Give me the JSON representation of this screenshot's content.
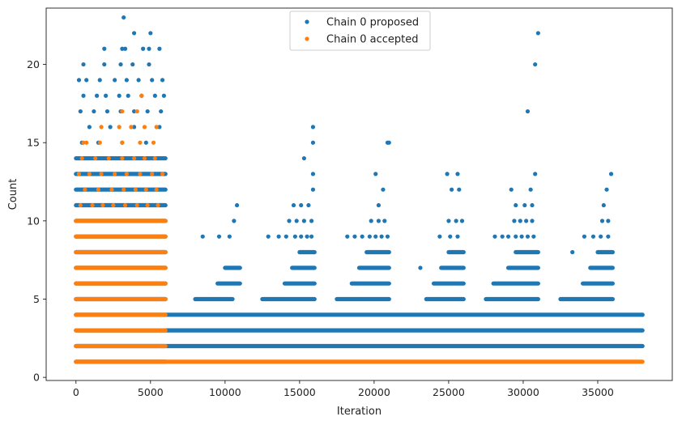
{
  "chart_data": {
    "type": "scatter",
    "xlabel": "Iteration",
    "ylabel": "Count",
    "xlim": [
      -2000,
      40000
    ],
    "ylim": [
      -0.2,
      23.6
    ],
    "xticks": [
      0,
      5000,
      10000,
      15000,
      20000,
      25000,
      30000,
      35000
    ],
    "yticks": [
      0,
      5,
      10,
      15,
      20
    ],
    "legend_position": "top-center",
    "series": [
      {
        "name": "Chain 0 proposed",
        "color": "#1f77b4",
        "segments": [
          {
            "y": 1,
            "x": [
              0,
              6000
            ]
          },
          {
            "y": 2,
            "x": [
              0,
              38000
            ]
          },
          {
            "y": 3,
            "x": [
              0,
              38000
            ]
          },
          {
            "y": 4,
            "x": [
              0,
              38000
            ]
          },
          {
            "y": 5,
            "x": [
              0,
              6000
            ]
          },
          {
            "y": 5,
            "x": [
              8000,
              10500
            ]
          },
          {
            "y": 5,
            "x": [
              12500,
              16000
            ]
          },
          {
            "y": 5,
            "x": [
              17500,
              21000
            ]
          },
          {
            "y": 5,
            "x": [
              23500,
              26000
            ]
          },
          {
            "y": 5,
            "x": [
              27500,
              31000
            ]
          },
          {
            "y": 5,
            "x": [
              32500,
              36000
            ]
          },
          {
            "y": 6,
            "x": [
              0,
              6000
            ]
          },
          {
            "y": 6,
            "x": [
              9500,
              11000
            ]
          },
          {
            "y": 6,
            "x": [
              14000,
              16000
            ]
          },
          {
            "y": 6,
            "x": [
              18500,
              21000
            ]
          },
          {
            "y": 6,
            "x": [
              24000,
              26000
            ]
          },
          {
            "y": 6,
            "x": [
              28000,
              31000
            ]
          },
          {
            "y": 6,
            "x": [
              34000,
              36000
            ]
          },
          {
            "y": 7,
            "x": [
              0,
              6000
            ]
          },
          {
            "y": 7,
            "x": [
              10000,
              11000
            ]
          },
          {
            "y": 7,
            "x": [
              14500,
              16000
            ]
          },
          {
            "y": 7,
            "x": [
              19000,
              21000
            ]
          },
          {
            "y": 7,
            "x": [
              24500,
              26000
            ]
          },
          {
            "y": 7,
            "x": [
              29000,
              31000
            ]
          },
          {
            "y": 7,
            "x": [
              34500,
              36000
            ]
          },
          {
            "y": 8,
            "x": [
              0,
              6000
            ]
          },
          {
            "y": 8,
            "x": [
              15000,
              16000
            ]
          },
          {
            "y": 8,
            "x": [
              19500,
              21000
            ]
          },
          {
            "y": 8,
            "x": [
              25000,
              26000
            ]
          },
          {
            "y": 8,
            "x": [
              29500,
              31000
            ]
          },
          {
            "y": 8,
            "x": [
              35000,
              36000
            ]
          },
          {
            "y": 9,
            "x": [
              0,
              6000
            ]
          },
          {
            "y": 10,
            "x": [
              0,
              6000
            ]
          },
          {
            "y": 11,
            "x": [
              0,
              6000
            ]
          },
          {
            "y": 12,
            "x": [
              0,
              6000
            ]
          },
          {
            "y": 13,
            "x": [
              0,
              6000
            ]
          },
          {
            "y": 14,
            "x": [
              0,
              6000
            ]
          }
        ],
        "points": [
          [
            400,
            15
          ],
          [
            900,
            16
          ],
          [
            1500,
            15
          ],
          [
            2300,
            16
          ],
          [
            3100,
            15
          ],
          [
            3900,
            16
          ],
          [
            4700,
            15
          ],
          [
            5600,
            16
          ],
          [
            300,
            17
          ],
          [
            1200,
            17
          ],
          [
            2100,
            17
          ],
          [
            3000,
            17
          ],
          [
            3900,
            17
          ],
          [
            4800,
            17
          ],
          [
            5700,
            17
          ],
          [
            500,
            18
          ],
          [
            1400,
            18
          ],
          [
            2000,
            18
          ],
          [
            2900,
            18
          ],
          [
            3500,
            18
          ],
          [
            4400,
            18
          ],
          [
            5300,
            18
          ],
          [
            5900,
            18
          ],
          [
            200,
            19
          ],
          [
            700,
            19
          ],
          [
            1600,
            19
          ],
          [
            2600,
            19
          ],
          [
            3400,
            19
          ],
          [
            4200,
            19
          ],
          [
            5100,
            19
          ],
          [
            5800,
            19
          ],
          [
            500,
            20
          ],
          [
            1900,
            20
          ],
          [
            3000,
            20
          ],
          [
            3800,
            20
          ],
          [
            4900,
            20
          ],
          [
            1900,
            21
          ],
          [
            3100,
            21
          ],
          [
            3300,
            21
          ],
          [
            4500,
            21
          ],
          [
            4900,
            21
          ],
          [
            5600,
            21
          ],
          [
            3900,
            22
          ],
          [
            5000,
            22
          ],
          [
            3200,
            23
          ],
          [
            8500,
            9
          ],
          [
            9600,
            9
          ],
          [
            10300,
            9
          ],
          [
            10600,
            10
          ],
          [
            10800,
            11
          ],
          [
            12900,
            9
          ],
          [
            13600,
            9
          ],
          [
            14100,
            9
          ],
          [
            14700,
            9
          ],
          [
            15100,
            9
          ],
          [
            15500,
            9
          ],
          [
            15800,
            9
          ],
          [
            14300,
            10
          ],
          [
            14800,
            10
          ],
          [
            15300,
            10
          ],
          [
            15800,
            10
          ],
          [
            14600,
            11
          ],
          [
            15100,
            11
          ],
          [
            15600,
            11
          ],
          [
            15900,
            12
          ],
          [
            15900,
            13
          ],
          [
            15300,
            14
          ],
          [
            15900,
            15
          ],
          [
            15900,
            16
          ],
          [
            18200,
            9
          ],
          [
            18700,
            9
          ],
          [
            19200,
            9
          ],
          [
            19700,
            9
          ],
          [
            20100,
            9
          ],
          [
            20500,
            9
          ],
          [
            20900,
            9
          ],
          [
            19800,
            10
          ],
          [
            20300,
            10
          ],
          [
            20700,
            10
          ],
          [
            20300,
            11
          ],
          [
            20600,
            12
          ],
          [
            20100,
            13
          ],
          [
            20900,
            15
          ],
          [
            21000,
            15
          ],
          [
            23100,
            7
          ],
          [
            24400,
            9
          ],
          [
            25100,
            9
          ],
          [
            25600,
            9
          ],
          [
            25000,
            10
          ],
          [
            25500,
            10
          ],
          [
            25200,
            12
          ],
          [
            25700,
            12
          ],
          [
            24900,
            13
          ],
          [
            25600,
            13
          ],
          [
            25900,
            10
          ],
          [
            28100,
            9
          ],
          [
            28600,
            9
          ],
          [
            29000,
            9
          ],
          [
            29500,
            9
          ],
          [
            29900,
            9
          ],
          [
            30300,
            9
          ],
          [
            30700,
            9
          ],
          [
            29400,
            10
          ],
          [
            29800,
            10
          ],
          [
            30200,
            10
          ],
          [
            30600,
            10
          ],
          [
            29500,
            11
          ],
          [
            30100,
            11
          ],
          [
            30600,
            11
          ],
          [
            29200,
            12
          ],
          [
            30500,
            12
          ],
          [
            30800,
            13
          ],
          [
            30300,
            17
          ],
          [
            30800,
            20
          ],
          [
            31000,
            22
          ],
          [
            33300,
            8
          ],
          [
            34100,
            9
          ],
          [
            34700,
            9
          ],
          [
            35200,
            9
          ],
          [
            35700,
            9
          ],
          [
            35300,
            10
          ],
          [
            35700,
            10
          ],
          [
            35400,
            11
          ],
          [
            35600,
            12
          ],
          [
            35900,
            13
          ],
          [
            38000,
            4
          ]
        ]
      },
      {
        "name": "Chain 0 accepted",
        "color": "#ff7f0e",
        "segments": [
          {
            "y": 1,
            "x": [
              0,
              38000
            ]
          },
          {
            "y": 2,
            "x": [
              0,
              6000
            ]
          },
          {
            "y": 3,
            "x": [
              0,
              6000
            ]
          },
          {
            "y": 4,
            "x": [
              0,
              6000
            ]
          },
          {
            "y": 5,
            "x": [
              0,
              6000
            ]
          },
          {
            "y": 6,
            "x": [
              0,
              6000
            ]
          },
          {
            "y": 7,
            "x": [
              0,
              6000
            ]
          },
          {
            "y": 8,
            "x": [
              0,
              6000
            ]
          },
          {
            "y": 9,
            "x": [
              0,
              6000
            ]
          },
          {
            "y": 10,
            "x": [
              0,
              6000
            ]
          }
        ],
        "points": [
          [
            300,
            11
          ],
          [
            1100,
            11
          ],
          [
            1800,
            11
          ],
          [
            2500,
            11
          ],
          [
            3300,
            11
          ],
          [
            4100,
            11
          ],
          [
            4800,
            11
          ],
          [
            5500,
            11
          ],
          [
            600,
            12
          ],
          [
            1500,
            12
          ],
          [
            2400,
            12
          ],
          [
            3200,
            12
          ],
          [
            4000,
            12
          ],
          [
            4700,
            12
          ],
          [
            5400,
            12
          ],
          [
            200,
            13
          ],
          [
            900,
            13
          ],
          [
            1700,
            13
          ],
          [
            2600,
            13
          ],
          [
            3400,
            13
          ],
          [
            4300,
            13
          ],
          [
            5100,
            13
          ],
          [
            5800,
            13
          ],
          [
            400,
            14
          ],
          [
            1300,
            14
          ],
          [
            2200,
            14
          ],
          [
            3100,
            14
          ],
          [
            3900,
            14
          ],
          [
            4600,
            14
          ],
          [
            5300,
            14
          ],
          [
            500,
            15
          ],
          [
            700,
            15
          ],
          [
            1600,
            15
          ],
          [
            3100,
            15
          ],
          [
            4300,
            15
          ],
          [
            5200,
            15
          ],
          [
            1700,
            16
          ],
          [
            2900,
            16
          ],
          [
            3700,
            16
          ],
          [
            4600,
            16
          ],
          [
            5400,
            16
          ],
          [
            3100,
            17
          ],
          [
            4100,
            17
          ],
          [
            4400,
            18
          ]
        ]
      }
    ]
  }
}
